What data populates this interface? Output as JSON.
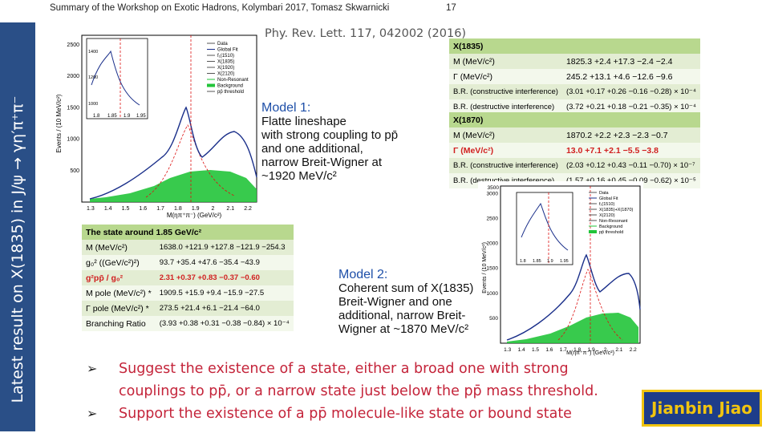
{
  "header": {
    "title": "Summary of the Workshop on Exotic Hadrons, Kolymbari 2017, Tomasz Skwarnicki",
    "page": "17"
  },
  "sidebar": {
    "title": "Latest result on X(1835) in J/ψ → γη′π⁺π⁻"
  },
  "reference": "Phy. Rev. Lett. 117, 042002 (2016)",
  "model1": {
    "title": "Model 1:",
    "lines": [
      "Flatte lineshape",
      "with strong coupling to pp̄",
      "and one additional,",
      "narrow Breit-Wigner at",
      "~1920 MeV/c²"
    ]
  },
  "model2": {
    "title": "Model 2:",
    "lines": [
      "Coherent sum of X(1835)",
      "Breit-Wigner and one",
      "additional, narrow Breit-",
      "Wigner at ~1870 MeV/c²"
    ]
  },
  "table_x1835": {
    "header": "X(1835)",
    "rows": [
      {
        "label": "M (MeV/c²)",
        "value": "1825.3 +2.4 +17.3 −2.4 −2.4"
      },
      {
        "label": "Γ (MeV/c²)",
        "value": "245.2 +13.1 +4.6 −12.6 −9.6"
      },
      {
        "label": "B.R. (constructive interference)",
        "value": "(3.01 +0.17 +0.26 −0.16 −0.28) × 10⁻⁴"
      },
      {
        "label": "B.R. (destructive interference)",
        "value": "(3.72 +0.21 +0.18 −0.21 −0.35) × 10⁻⁴"
      }
    ]
  },
  "table_x1870": {
    "header": "X(1870)",
    "rows": [
      {
        "label": "M (MeV/c²)",
        "value": "1870.2 +2.2 +2.3 −2.3 −0.7",
        "red": false
      },
      {
        "label": "Γ (MeV/c²)",
        "value": "13.0 +7.1 +2.1 −5.5 −3.8",
        "red": true
      },
      {
        "label": "B.R. (constructive interference)",
        "value": "(2.03 +0.12 +0.43 −0.11 −0.70) × 10⁻⁷",
        "red": false
      },
      {
        "label": "B.R. (destructive interference)",
        "value": "(1.57 +0.16 +0.45 −0.09 −0.62) × 10⁻⁵",
        "red": false
      }
    ]
  },
  "table_state": {
    "header": "The state around 1.85 GeV/c²",
    "rows": [
      {
        "label": "M (MeV/c²)",
        "value": "1638.0 +121.9 +127.8 −121.9 −254.3",
        "red": false
      },
      {
        "label": "g₀² ((GeV/c²)²)",
        "value": "93.7 +35.4 +47.6 −35.4 −43.9",
        "red": false
      },
      {
        "label": "g²pp̄ / g₀²",
        "value": "2.31 +0.37 +0.83 −0.37 −0.60",
        "red": true
      },
      {
        "label": "M pole (MeV/c²) *",
        "value": "1909.5 +15.9 +9.4 −15.9 −27.5",
        "red": false
      },
      {
        "label": "Γ pole (MeV/c²) *",
        "value": "273.5 +21.4 +6.1 −21.4 −64.0",
        "red": false
      },
      {
        "label": "Branching Ratio",
        "value": "(3.93 +0.38 +0.31 −0.38 −0.84) × 10⁻⁴",
        "red": false
      }
    ]
  },
  "plot1": {
    "ylabel": "Events / (10 MeV/c²)",
    "xlabel": "M(ηπ⁺π⁻) (GeV/c²)",
    "xticks": [
      "1.3",
      "1.4",
      "1.5",
      "1.6",
      "1.7",
      "1.8",
      "1.9",
      "2",
      "2.1",
      "2.2"
    ],
    "yticks": [
      "500",
      "1000",
      "1500",
      "2000",
      "2500"
    ],
    "legend": [
      "Data",
      "Global Fit",
      "f₁(1510)",
      "X(1835)",
      "X(1920)",
      "X(2120)",
      "Non-Resonant",
      "Background",
      "pp̄ threshold"
    ],
    "inset_xticks": [
      "1.8",
      "1.85",
      "1.9",
      "1.95"
    ],
    "inset_yticks": [
      "1000",
      "1200",
      "1400"
    ]
  },
  "plot2": {
    "ylabel": "Events / (10 MeV/c²)",
    "xlabel": "M(ηπ⁺π⁻) (GeV/c²)",
    "xticks": [
      "1.3",
      "1.4",
      "1.5",
      "1.6",
      "1.7",
      "1.8",
      "1.9",
      "2",
      "2.1",
      "2.2"
    ],
    "yticks": [
      "500",
      "1000",
      "1500",
      "2000",
      "2500",
      "3000"
    ],
    "top_tick": "3500",
    "legend": [
      "Data",
      "Global Fit",
      "f₁(1510)",
      "X(1835)+X(1870)",
      "X(2120)",
      "Non-Resonant",
      "Background",
      "pp̄ threshold"
    ],
    "inset_xticks": [
      "1.8",
      "1.85",
      "1.9",
      "1.95"
    ]
  },
  "bullets": [
    "Suggest the existence of a state, either a broad one with strong couplings to pp̄, or a narrow state just below the pp̄ mass threshold.",
    "Support the existence of a pp̄ molecule-like state or bound state"
  ],
  "bullet_marker": "➢",
  "badge": "Jianbin Jiao",
  "colors": {
    "sidebar": "#2a4f87",
    "table_header": "#b8d88e",
    "bullet_text": "#c4243a",
    "fit_curve": "#1a2f8a",
    "background_fill": "#22c43a",
    "badge_bg": "#1e3d8a",
    "badge_text": "#f1c40f"
  }
}
